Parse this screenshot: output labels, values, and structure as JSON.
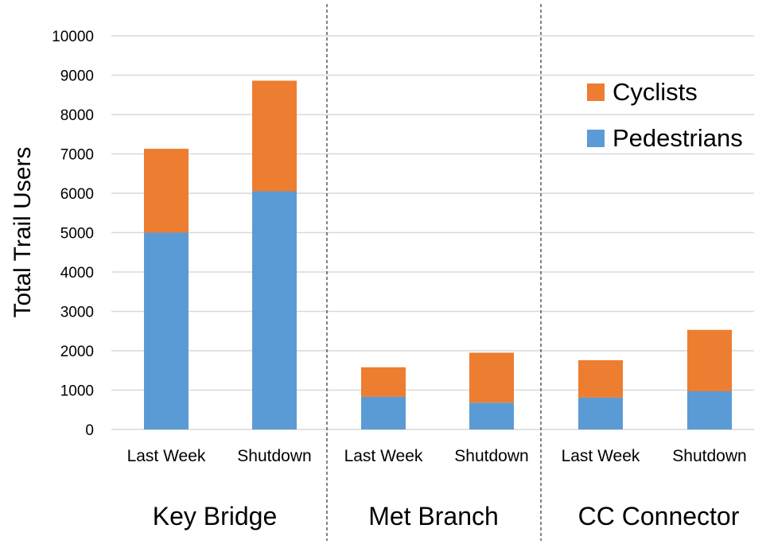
{
  "chart_data": {
    "type": "bar",
    "stacked": true,
    "ylabel": "Total Trail Users",
    "ylim": [
      0,
      10000
    ],
    "yticks": [
      0,
      1000,
      2000,
      3000,
      4000,
      5000,
      6000,
      7000,
      8000,
      9000,
      10000
    ],
    "grid": true,
    "legend_position": "top-right",
    "groups": [
      "Key Bridge",
      "Met Branch",
      "CC Connector"
    ],
    "categories": [
      "Last Week",
      "Shutdown",
      "Last Week",
      "Shutdown",
      "Last Week",
      "Shutdown"
    ],
    "series": [
      {
        "name": "Pedestrians",
        "color": "#5b9bd5",
        "values": [
          5000,
          6050,
          830,
          680,
          810,
          970
        ]
      },
      {
        "name": "Cyclists",
        "color": "#ed7d31",
        "values": [
          2130,
          2810,
          750,
          1270,
          950,
          1560
        ]
      }
    ],
    "legend_order": [
      "Cyclists",
      "Pedestrians"
    ]
  }
}
